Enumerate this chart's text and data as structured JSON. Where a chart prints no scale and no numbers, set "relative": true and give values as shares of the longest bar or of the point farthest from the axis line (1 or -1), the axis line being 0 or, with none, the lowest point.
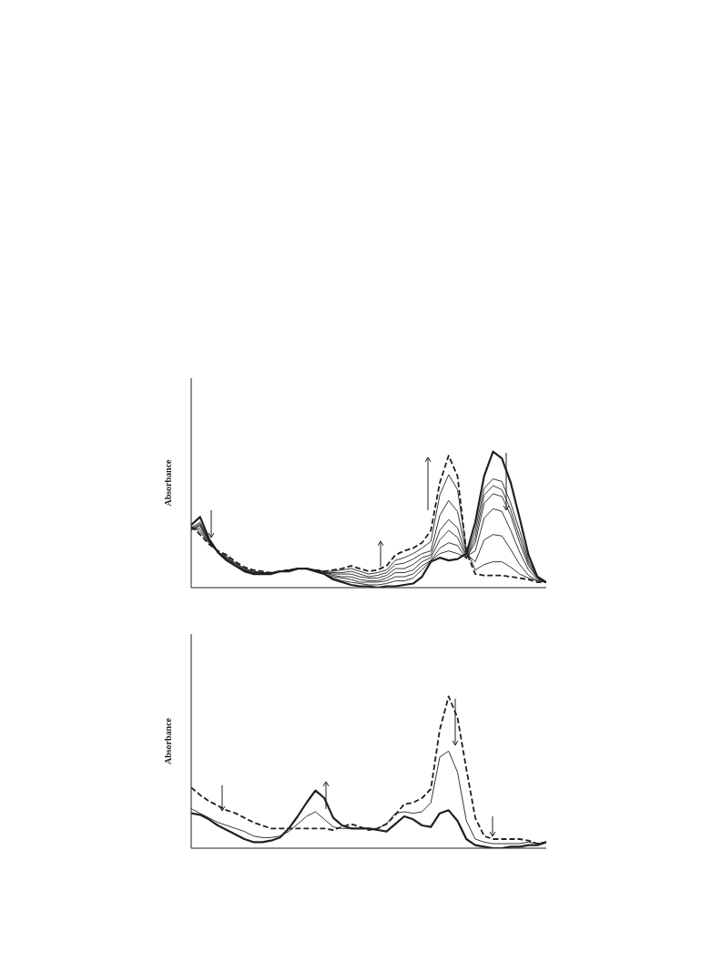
{
  "chart_data": [
    {
      "type": "line",
      "ylabel": "Absorbance",
      "relative": true,
      "tick_labels": false,
      "categories": [
        null,
        null,
        null,
        null,
        null,
        null,
        null,
        null,
        null,
        null,
        null,
        null,
        null,
        null,
        null,
        null,
        null,
        null,
        null,
        null,
        null,
        null,
        null,
        null,
        null,
        null,
        null,
        null,
        null,
        null,
        null,
        null,
        null,
        null,
        null,
        null,
        null,
        null,
        null,
        null,
        null
      ],
      "series": [
        {
          "color": "#231f20",
          "line_style": "solid",
          "values": [
            0.46,
            0.52,
            0.36,
            0.26,
            0.2,
            0.16,
            0.12,
            0.1,
            0.1,
            0.1,
            0.12,
            0.12,
            0.14,
            0.14,
            0.12,
            0.1,
            0.06,
            0.04,
            0.02,
            0.01,
            0.01,
            0,
            0.01,
            0.01,
            0.02,
            0.03,
            0.08,
            0.19,
            0.22,
            0.2,
            0.21,
            0.25,
            0.48,
            0.82,
            1,
            0.95,
            0.77,
            0.51,
            0.24,
            0.08,
            0.04
          ]
        },
        {
          "color": "#231f20",
          "line_style": "solid",
          "values": [
            0.44,
            0.48,
            0.35,
            0.26,
            0.2,
            0.16,
            0.12,
            0.1,
            0.1,
            0.1,
            0.12,
            0.12,
            0.14,
            0.14,
            0.12,
            0.1,
            0.07,
            0.05,
            0.04,
            0.03,
            0.02,
            0.02,
            0.03,
            0.05,
            0.05,
            0.07,
            0.13,
            0.2,
            0.25,
            0.27,
            0.25,
            0.22,
            0.42,
            0.73,
            0.8,
            0.78,
            0.62,
            0.42,
            0.2,
            0.08,
            0.04
          ]
        },
        {
          "color": "#231f20",
          "line_style": "solid",
          "values": [
            0.43,
            0.47,
            0.35,
            0.26,
            0.21,
            0.16,
            0.13,
            0.11,
            0.1,
            0.1,
            0.12,
            0.12,
            0.14,
            0.14,
            0.12,
            0.1,
            0.08,
            0.07,
            0.06,
            0.04,
            0.04,
            0.04,
            0.05,
            0.08,
            0.08,
            0.1,
            0.16,
            0.2,
            0.29,
            0.33,
            0.31,
            0.21,
            0.37,
            0.68,
            0.75,
            0.72,
            0.57,
            0.37,
            0.18,
            0.07,
            0.04
          ]
        },
        {
          "color": "#231f20",
          "line_style": "solid",
          "values": [
            0.42,
            0.46,
            0.34,
            0.26,
            0.21,
            0.17,
            0.13,
            0.11,
            0.1,
            0.1,
            0.12,
            0.12,
            0.14,
            0.14,
            0.12,
            0.11,
            0.09,
            0.08,
            0.08,
            0.06,
            0.05,
            0.05,
            0.07,
            0.11,
            0.11,
            0.13,
            0.19,
            0.22,
            0.35,
            0.42,
            0.37,
            0.22,
            0.33,
            0.62,
            0.69,
            0.67,
            0.53,
            0.33,
            0.16,
            0.07,
            0.04
          ]
        },
        {
          "color": "#231f20",
          "line_style": "solid",
          "values": [
            0.43,
            0.45,
            0.34,
            0.26,
            0.22,
            0.17,
            0.13,
            0.11,
            0.11,
            0.1,
            0.12,
            0.12,
            0.14,
            0.14,
            0.12,
            0.11,
            0.1,
            0.1,
            0.1,
            0.08,
            0.07,
            0.07,
            0.09,
            0.14,
            0.14,
            0.17,
            0.22,
            0.24,
            0.42,
            0.5,
            0.44,
            0.23,
            0.27,
            0.51,
            0.58,
            0.56,
            0.42,
            0.26,
            0.13,
            0.06,
            0.04
          ]
        },
        {
          "color": "#231f20",
          "line_style": "solid",
          "values": [
            0.44,
            0.43,
            0.33,
            0.26,
            0.22,
            0.18,
            0.14,
            0.12,
            0.11,
            0.11,
            0.12,
            0.13,
            0.14,
            0.14,
            0.13,
            0.11,
            0.11,
            0.11,
            0.12,
            0.1,
            0.08,
            0.09,
            0.11,
            0.17,
            0.18,
            0.21,
            0.25,
            0.27,
            0.53,
            0.64,
            0.56,
            0.25,
            0.19,
            0.35,
            0.39,
            0.38,
            0.28,
            0.17,
            0.09,
            0.05,
            0.04
          ]
        },
        {
          "color": "#231f20",
          "line_style": "solid",
          "values": [
            0.45,
            0.41,
            0.33,
            0.26,
            0.23,
            0.18,
            0.14,
            0.12,
            0.11,
            0.11,
            0.12,
            0.13,
            0.14,
            0.14,
            0.13,
            0.12,
            0.12,
            0.13,
            0.14,
            0.12,
            0.1,
            0.11,
            0.13,
            0.2,
            0.22,
            0.25,
            0.29,
            0.34,
            0.68,
            0.83,
            0.72,
            0.28,
            0.13,
            0.17,
            0.19,
            0.19,
            0.15,
            0.1,
            0.07,
            0.05,
            0.04
          ]
        },
        {
          "color": "#231f20",
          "line_style": "dashed",
          "values": [
            0.45,
            0.39,
            0.32,
            0.27,
            0.24,
            0.19,
            0.15,
            0.13,
            0.12,
            0.11,
            0.12,
            0.13,
            0.14,
            0.14,
            0.13,
            0.12,
            0.13,
            0.14,
            0.16,
            0.14,
            0.12,
            0.13,
            0.16,
            0.24,
            0.27,
            0.29,
            0.33,
            0.42,
            0.77,
            0.97,
            0.82,
            0.26,
            0.1,
            0.09,
            0.09,
            0.09,
            0.08,
            0.07,
            0.06,
            0.04,
            0.04
          ]
        }
      ]
    },
    {
      "type": "line",
      "ylabel": "Absorbance",
      "relative": true,
      "tick_labels": false,
      "categories": [
        null,
        null,
        null,
        null,
        null,
        null,
        null,
        null,
        null,
        null,
        null,
        null,
        null,
        null,
        null,
        null,
        null,
        null,
        null,
        null,
        null,
        null,
        null,
        null,
        null,
        null,
        null,
        null,
        null,
        null,
        null,
        null,
        null,
        null,
        null,
        null,
        null,
        null,
        null,
        null,
        null
      ],
      "series": [
        {
          "color": "#231f20",
          "line_style": "solid",
          "values": [
            0.23,
            0.22,
            0.19,
            0.15,
            0.12,
            0.09,
            0.06,
            0.04,
            0.04,
            0.05,
            0.07,
            0.13,
            0.21,
            0.3,
            0.38,
            0.33,
            0.2,
            0.15,
            0.13,
            0.13,
            0.13,
            0.12,
            0.11,
            0.16,
            0.21,
            0.19,
            0.15,
            0.14,
            0.23,
            0.25,
            0.18,
            0.06,
            0.02,
            0.01,
            0,
            0,
            0.01,
            0.01,
            0.02,
            0.02,
            0.04
          ]
        },
        {
          "color": "#231f20",
          "line_style": "solid",
          "values": [
            0.26,
            0.23,
            0.2,
            0.17,
            0.15,
            0.13,
            0.11,
            0.08,
            0.07,
            0.07,
            0.08,
            0.11,
            0.16,
            0.21,
            0.24,
            0.19,
            0.14,
            0.13,
            0.13,
            0.13,
            0.13,
            0.13,
            0.16,
            0.23,
            0.24,
            0.23,
            0.24,
            0.3,
            0.6,
            0.64,
            0.5,
            0.18,
            0.06,
            0.04,
            0.03,
            0.03,
            0.03,
            0.03,
            0.04,
            0.03,
            0.04
          ]
        },
        {
          "color": "#231f20",
          "line_style": "dashed",
          "values": [
            0.4,
            0.35,
            0.31,
            0.28,
            0.25,
            0.23,
            0.2,
            0.17,
            0.15,
            0.13,
            0.13,
            0.13,
            0.13,
            0.13,
            0.13,
            0.13,
            0.12,
            0.14,
            0.16,
            0.14,
            0.12,
            0.13,
            0.16,
            0.22,
            0.29,
            0.3,
            0.33,
            0.39,
            0.78,
            1,
            0.86,
            0.52,
            0.2,
            0.08,
            0.06,
            0.06,
            0.06,
            0.06,
            0.05,
            0.03,
            0.04
          ]
        }
      ]
    }
  ]
}
